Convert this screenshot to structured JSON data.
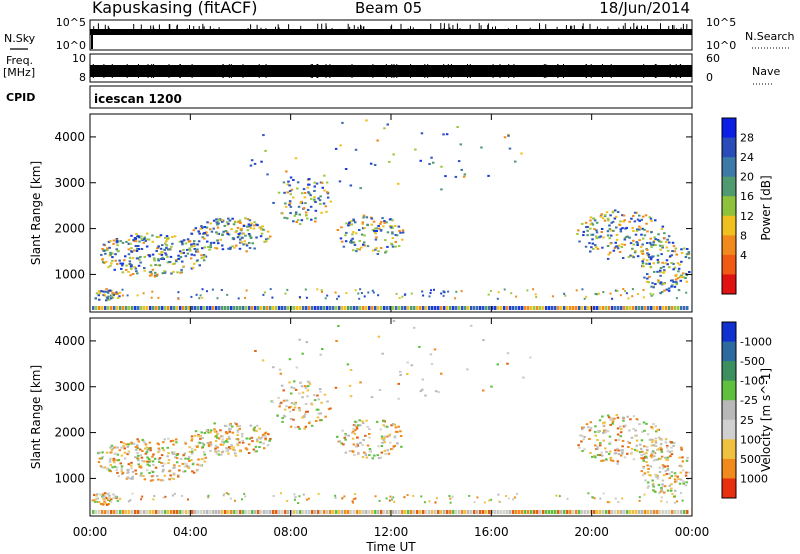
{
  "header": {
    "station": "Kapuskasing (fitACF)",
    "beam": "Beam 05",
    "date": "18/Jun/2014"
  },
  "strip_labels": {
    "nsky": "N.Sky",
    "nsearch": "N.Search",
    "freq": "Freq.",
    "freq_unit": "[MHz]",
    "nave": "Nave",
    "cpid": "CPID",
    "cpid_value": "icescan 1200",
    "noise_top": "10^5",
    "noise_bottom": "10^0",
    "freq_top": "10",
    "freq_bottom": "8",
    "nave_top": "60",
    "nave_bottom": "0"
  },
  "chart_data": [
    {
      "type": "heatmap",
      "title": "Power",
      "ylabel": "Slant Range [km]",
      "xlabel": "Time UT",
      "x_ticks": [
        "00:00",
        "04:00",
        "08:00",
        "12:00",
        "16:00",
        "20:00",
        "00:00"
      ],
      "y_ticks": [
        1000,
        2000,
        3000,
        4000
      ],
      "ylim": [
        180,
        4500
      ],
      "colorbar": {
        "label": "Power [dB]",
        "ticks": [
          "4",
          "8",
          "12",
          "16",
          "20",
          "24",
          "28"
        ],
        "colors": [
          "#0a1ee6",
          "#2a4cb8",
          "#3d7aa8",
          "#4f9a6e",
          "#8fc23c",
          "#f0c020",
          "#f08a1c",
          "#f05a14",
          "#e01212"
        ]
      }
    },
    {
      "type": "heatmap",
      "title": "Velocity",
      "ylabel": "Slant Range [km]",
      "xlabel": "Time UT",
      "x_ticks": [
        "00:00",
        "04:00",
        "08:00",
        "12:00",
        "16:00",
        "20:00",
        "00:00"
      ],
      "y_ticks": [
        1000,
        2000,
        3000,
        4000
      ],
      "ylim": [
        180,
        4500
      ],
      "colorbar": {
        "label": "Velocity [m s^-1]",
        "ticks": [
          "1000",
          "500",
          "100",
          "25",
          "-25",
          "-100",
          "-500",
          "-1000"
        ],
        "colors": [
          "#1030d0",
          "#2c6aa0",
          "#3c9060",
          "#5fc040",
          "#b8b8b8",
          "#d0d0d0",
          "#f0c040",
          "#f08a1c",
          "#e83010"
        ]
      }
    }
  ]
}
